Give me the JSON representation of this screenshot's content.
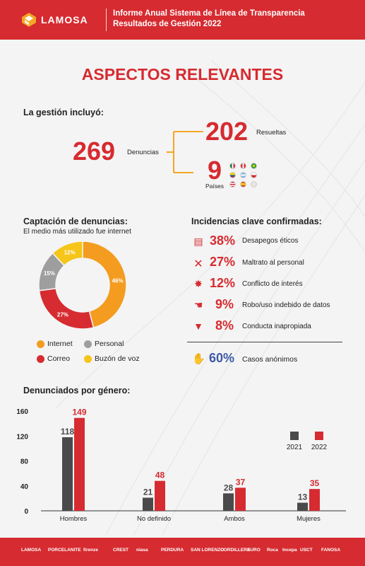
{
  "header": {
    "logo_text": "LAMOSA",
    "title_line1": "Informe Anual Sistema de Línea de Transparencia",
    "title_line2": "Resultados de Gestión 2022"
  },
  "title": "ASPECTOS RELEVANTES",
  "gestion": {
    "intro": "La gestión incluyó:",
    "denuncias_value": "269",
    "denuncias_label": "Denuncias",
    "resueltas_value": "202",
    "resueltas_label": "Resueltas",
    "paises_value": "9",
    "paises_label": "Países"
  },
  "captacion": {
    "title": "Captación de denuncias:",
    "subtitle": "El medio más utilizado fue internet",
    "legend": [
      {
        "label": "Internet",
        "color": "#f39c1f"
      },
      {
        "label": "Personal",
        "color": "#9e9e9e"
      },
      {
        "label": "Correo",
        "color": "#d62b30"
      },
      {
        "label": "Buzón de voz",
        "color": "#f5c518"
      }
    ]
  },
  "incidencias": {
    "title": "Incidencias clave confirmadas:",
    "items": [
      {
        "pct": "38%",
        "label": "Desapegos éticos",
        "icon": "document-icon"
      },
      {
        "pct": "27%",
        "label": "Maltrato al personal",
        "icon": "cross-icon"
      },
      {
        "pct": "12%",
        "label": "Conflicto de interés",
        "icon": "burst-icon"
      },
      {
        "pct": "9%",
        "label": "Robo/uso indebido de datos",
        "icon": "hand-icon"
      },
      {
        "pct": "8%",
        "label": "Conducta inapropiada",
        "icon": "thumbs-down-icon"
      }
    ],
    "anonimos_pct": "60%",
    "anonimos_label": "Casos anónimos"
  },
  "genero": {
    "title": "Denunciados por género:"
  },
  "chart_data": [
    {
      "type": "pie",
      "title": "",
      "labels": [
        "Internet",
        "Correo",
        "Personal",
        "Buzón de voz"
      ],
      "values": [
        46,
        27,
        15,
        12
      ],
      "value_labels": [
        "46%",
        "27%",
        "15%",
        "12%"
      ],
      "colors": [
        "#f39c1f",
        "#d62b30",
        "#9e9e9e",
        "#f5c518"
      ],
      "donut": true
    },
    {
      "type": "bar",
      "title": "",
      "categories": [
        "Hombres",
        "No definido",
        "Ambos",
        "Mujeres"
      ],
      "series": [
        {
          "name": "2021",
          "values": [
            118,
            21,
            28,
            13
          ],
          "color": "#4a4a4a"
        },
        {
          "name": "2022",
          "values": [
            149,
            48,
            37,
            35
          ],
          "color": "#d62b30"
        }
      ],
      "yticks": [
        "0",
        "40",
        "80",
        "120",
        "160"
      ],
      "ylim": [
        0,
        160
      ],
      "legend": "top-right",
      "grid": false
    }
  ],
  "footer": {
    "brands": [
      "LAMOSA",
      "PORCELANITE",
      "firenze",
      "CREST",
      "niasa",
      "PERDURA",
      "SAN LORENZO",
      "CORDILLERA",
      "EURO",
      "Roca",
      "Incepa",
      "USCT",
      "FANOSA"
    ]
  }
}
